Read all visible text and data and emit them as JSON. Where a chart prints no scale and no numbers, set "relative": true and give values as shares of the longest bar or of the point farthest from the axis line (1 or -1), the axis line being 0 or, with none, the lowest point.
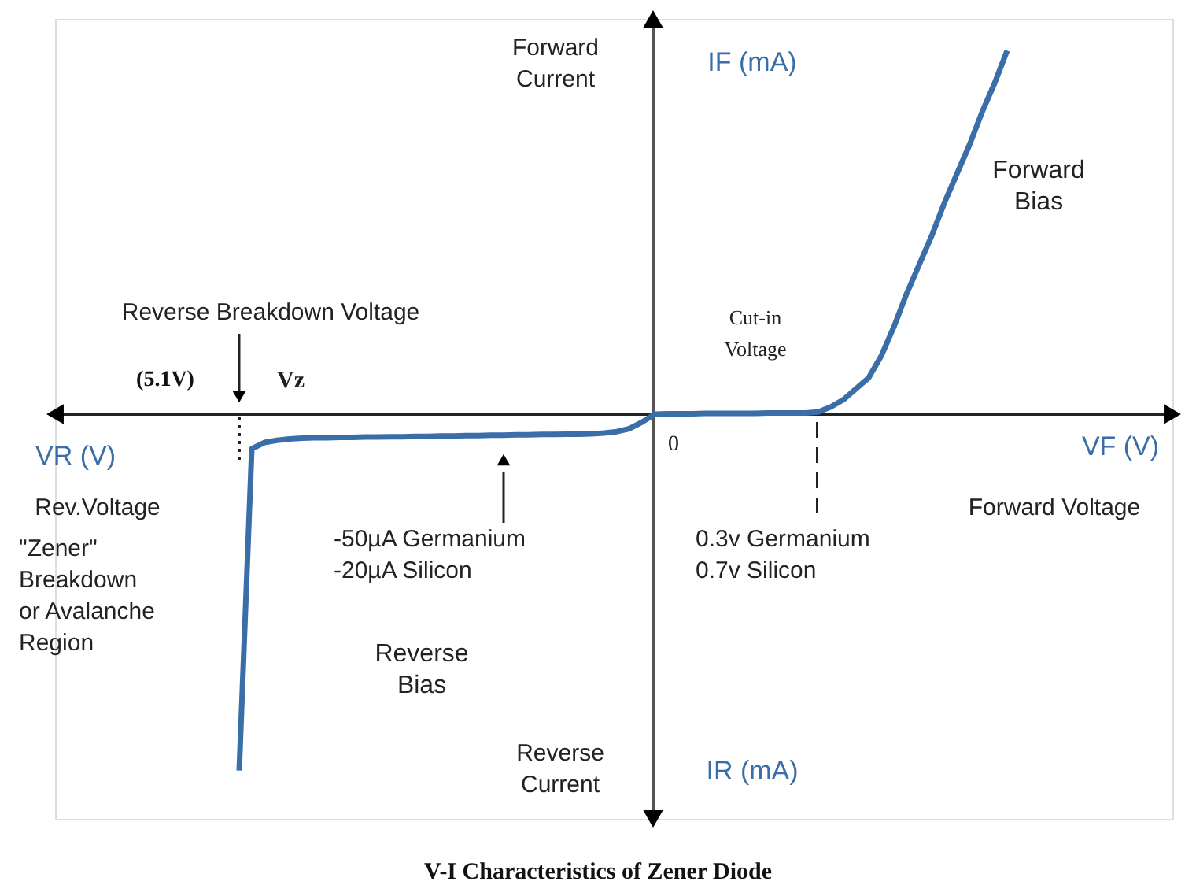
{
  "chart_data": {
    "type": "line",
    "relative": true,
    "title": "V-I Characteristics of Zener Diode",
    "xlabel": "VF (V)",
    "ylabel": "IF (mA)",
    "categories": [
      null,
      null,
      null,
      null,
      null,
      null,
      null,
      null,
      null,
      null,
      null,
      null,
      null,
      null,
      null,
      null,
      null,
      null,
      null,
      null,
      null,
      null,
      null,
      null,
      null,
      null,
      null,
      null,
      null,
      null,
      null,
      null,
      null,
      null,
      null,
      null,
      null,
      null,
      null,
      null,
      null,
      null,
      null,
      null,
      null,
      null,
      null,
      null,
      null,
      null,
      null,
      null,
      null,
      null,
      null,
      null,
      null,
      null,
      null,
      null,
      null,
      null
    ],
    "series": [
      {
        "color": "#3a6ea8",
        "values": [
          -0.98,
          -0.095,
          -0.078,
          -0.072,
          -0.068,
          -0.066,
          -0.065,
          -0.065,
          -0.064,
          -0.064,
          -0.063,
          -0.063,
          -0.062,
          -0.062,
          -0.061,
          -0.061,
          -0.06,
          -0.06,
          -0.059,
          -0.059,
          -0.058,
          -0.058,
          -0.057,
          -0.057,
          -0.056,
          -0.056,
          -0.055,
          -0.055,
          -0.054,
          -0.052,
          -0.048,
          -0.04,
          -0.022,
          0,
          0.001,
          0.001,
          0.001,
          0.002,
          0.002,
          0.002,
          0.002,
          0.002,
          0.003,
          0.003,
          0.003,
          0.003,
          0.006,
          0.02,
          0.04,
          0.07,
          0.1,
          0.16,
          0.24,
          0.33,
          0.41,
          0.49,
          0.58,
          0.66,
          0.74,
          0.83,
          0.91,
          1.0
        ]
      }
    ],
    "marker": "none",
    "line_style": "solid",
    "annotations": [
      "Forward\nCurrent",
      "Reverse\nCurrent",
      "Forward\nBias",
      "Reverse Breakdown Voltage",
      "Vz",
      "Cut-in\nVoltage",
      "Rev.Voltage",
      "Forward Voltage",
      "-50µA Germanium\n-20µA Silicon",
      "0.3v Germanium\n0.7v Silicon",
      "\"Zener\"\nBreakdown\nor Avalanche\nRegion",
      "Reverse\nBias",
      "VR (V)",
      "IR (mA)",
      "(5.1V)",
      "0"
    ]
  }
}
